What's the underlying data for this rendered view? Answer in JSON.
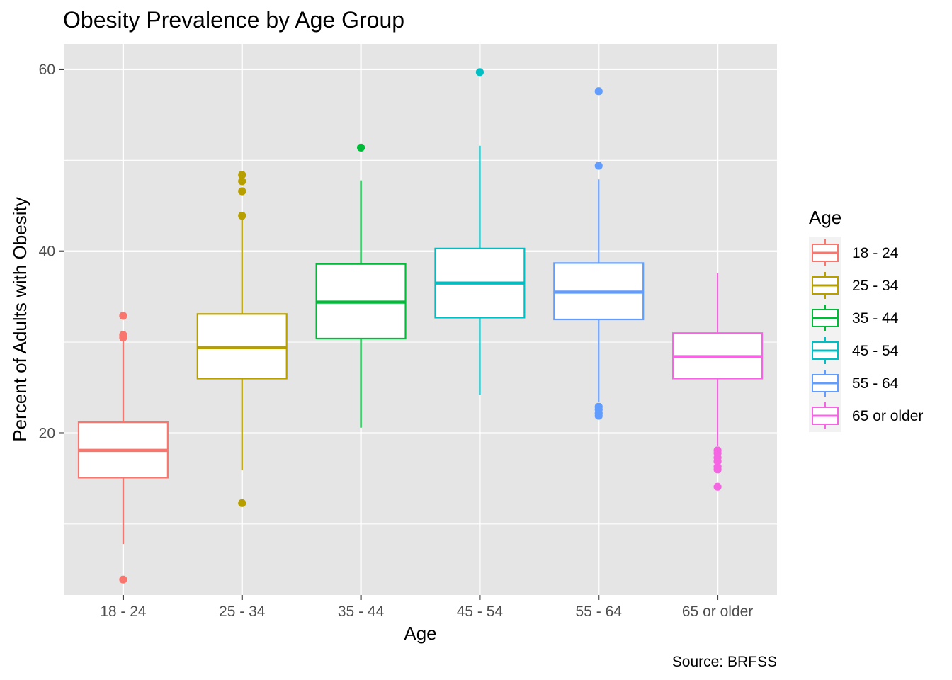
{
  "chart_data": {
    "type": "boxplot",
    "title": "Obesity Prevalence by Age Group",
    "xlabel": "Age",
    "ylabel": "Percent of Adults with Obesity",
    "caption": "Source: BRFSS",
    "ylim": [
      2.2,
      62.8
    ],
    "yticks": [
      20,
      40,
      60
    ],
    "grid": true,
    "legend": {
      "title": "Age",
      "position": "right"
    },
    "categories": [
      "18 - 24",
      "25 - 34",
      "35 - 44",
      "45 - 54",
      "55 - 64",
      "65 or older"
    ],
    "series": [
      {
        "name": "18 - 24",
        "color": "#F8766D",
        "whisker_low": 7.8,
        "q1": 15.1,
        "median": 18.1,
        "q3": 21.2,
        "whisker_high": 30.3,
        "outliers": [
          3.9,
          30.5,
          30.8,
          32.9
        ]
      },
      {
        "name": "25 - 34",
        "color": "#B79F00",
        "whisker_low": 15.9,
        "q1": 26.0,
        "median": 29.4,
        "q3": 33.1,
        "whisker_high": 43.5,
        "outliers": [
          12.3,
          43.9,
          46.6,
          47.7,
          48.4
        ]
      },
      {
        "name": "35 - 44",
        "color": "#00BA38",
        "whisker_low": 20.6,
        "q1": 30.4,
        "median": 34.4,
        "q3": 38.6,
        "whisker_high": 47.8,
        "outliers": [
          51.4
        ]
      },
      {
        "name": "45 - 54",
        "color": "#00BFC4",
        "whisker_low": 24.2,
        "q1": 32.7,
        "median": 36.5,
        "q3": 40.3,
        "whisker_high": 51.6,
        "outliers": [
          59.7
        ]
      },
      {
        "name": "55 - 64",
        "color": "#619CFF",
        "whisker_low": 23.4,
        "q1": 32.5,
        "median": 35.5,
        "q3": 38.7,
        "whisker_high": 47.9,
        "outliers": [
          21.9,
          22.2,
          22.6,
          22.9,
          49.4,
          57.6
        ]
      },
      {
        "name": "65 or older",
        "color": "#F564E3",
        "whisker_low": 18.6,
        "q1": 26.0,
        "median": 28.4,
        "q3": 31.0,
        "whisker_high": 37.6,
        "outliers": [
          14.1,
          16.0,
          16.3,
          16.9,
          17.3,
          17.8,
          18.1
        ]
      }
    ]
  }
}
